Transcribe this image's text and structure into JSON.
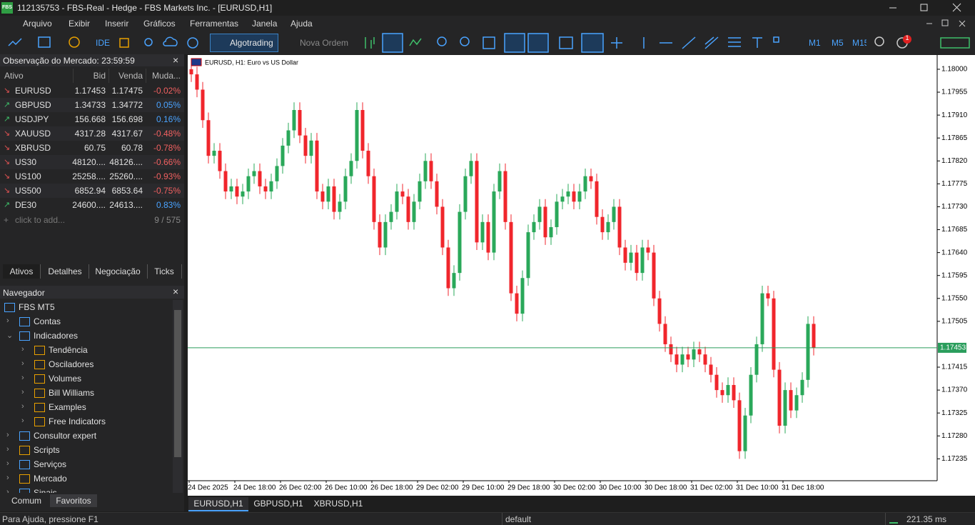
{
  "window": {
    "logo": "FBS",
    "title": "112135753 - FBS-Real - Hedge - FBS Markets Inc. - [EURUSD,H1]"
  },
  "menu": [
    "Arquivo",
    "Exibir",
    "Inserir",
    "Gráficos",
    "Ferramentas",
    "Janela",
    "Ajuda"
  ],
  "toolbar": {
    "ide": "IDE",
    "algotrading": "Algotrading",
    "new_order": "Nova Ordem",
    "timeframes": [
      "M1",
      "M5",
      "M15"
    ],
    "notifications": "1"
  },
  "market_watch": {
    "title": "Observação do Mercado: 23:59:59",
    "columns": [
      "Ativo",
      "Bid",
      "Venda",
      "Muda..."
    ],
    "rows": [
      [
        "EURUSD",
        "1.17453",
        "1.17475",
        "-0.02%"
      ],
      [
        "GBPUSD",
        "1.34733",
        "1.34772",
        "0.05%"
      ],
      [
        "USDJPY",
        "156.668",
        "156.698",
        "0.16%"
      ],
      [
        "XAUUSD",
        "4317.28",
        "4317.67",
        "-0.48%"
      ],
      [
        "XBRUSD",
        "60.75",
        "60.78",
        "-0.78%"
      ],
      [
        "US30",
        "48120....",
        "48126....",
        "-0.66%"
      ],
      [
        "US100",
        "25258....",
        "25260....",
        "-0.93%"
      ],
      [
        "US500",
        "6852.94",
        "6853.64",
        "-0.75%"
      ],
      [
        "DE30",
        "24600....",
        "24613....",
        "0.83%"
      ]
    ],
    "add": "click to add...",
    "count": "9 / 575",
    "tabs": [
      "Ativos",
      "Detalhes",
      "Negociação",
      "Ticks"
    ]
  },
  "navigator": {
    "title": "Navegador",
    "items": [
      "FBS MT5",
      "Contas",
      "Indicadores",
      "Tendência",
      "Osciladores",
      "Volumes",
      "Bill Williams",
      "Examples",
      "Free Indicators",
      "Consultor expert",
      "Scripts",
      "Serviços",
      "Mercado",
      "Sinais"
    ],
    "tabs": [
      "Comum",
      "Favoritos"
    ]
  },
  "chart": {
    "type": "candlestick",
    "title": "EURUSD, H1:  Euro vs US Dollar",
    "colors": {
      "up": "#2aa85a",
      "down": "#f0262c",
      "bid": "#2a9d5c"
    },
    "grid": false,
    "ylim": [
      1.17192,
      1.18028
    ],
    "yticks": [
      {
        "value": 1.18,
        "label": "1.18000"
      },
      1.17955,
      {
        "value": 1.1791,
        "label": "1.17910"
      },
      1.17865,
      {
        "value": 1.1782,
        "label": "1.17820"
      },
      1.17775,
      {
        "value": 1.1773,
        "label": "1.17730"
      },
      1.17685,
      {
        "value": 1.1764,
        "label": "1.17640"
      },
      1.17595,
      {
        "value": 1.1755,
        "label": "1.17550"
      },
      1.17505,
      1.17415,
      {
        "value": 1.1737,
        "label": "1.17370"
      },
      1.17325,
      {
        "value": 1.1728,
        "label": "1.17280"
      },
      1.17235
    ],
    "bid_line": 1.17453,
    "x_labels": [
      "24 Dec 2025",
      "24 Dec 18:00",
      "26 Dec 02:00",
      "26 Dec 10:00",
      "26 Dec 18:00",
      "29 Dec 02:00",
      "29 Dec 10:00",
      "29 Dec 18:00",
      "30 Dec 02:00",
      "30 Dec 10:00",
      "30 Dec 18:00",
      "31 Dec 02:00",
      "31 Dec 10:00",
      "31 Dec 18:00"
    ],
    "candles": [
      [
        1.18,
        1.18015,
        1.17975,
        1.1799
      ],
      [
        1.1799,
        1.18005,
        1.17945,
        1.1796
      ],
      [
        1.1796,
        1.17975,
        1.17885,
        1.179
      ],
      [
        1.179,
        1.17915,
        1.17815,
        1.1783
      ],
      [
        1.1783,
        1.17855,
        1.17815,
        1.1784
      ],
      [
        1.1784,
        1.17855,
        1.17785,
        1.178
      ],
      [
        1.178,
        1.17815,
        1.17745,
        1.1776
      ],
      [
        1.1776,
        1.17785,
        1.17745,
        1.1777
      ],
      [
        1.1777,
        1.17785,
        1.17735,
        1.1775
      ],
      [
        1.1775,
        1.17775,
        1.17735,
        1.1776
      ],
      [
        1.1776,
        1.17805,
        1.17745,
        1.1779
      ],
      [
        1.1779,
        1.17815,
        1.17775,
        1.178
      ],
      [
        1.178,
        1.17815,
        1.17755,
        1.1777
      ],
      [
        1.1777,
        1.17785,
        1.17745,
        1.1776
      ],
      [
        1.1776,
        1.17795,
        1.17745,
        1.1778
      ],
      [
        1.1778,
        1.17825,
        1.17765,
        1.1781
      ],
      [
        1.1781,
        1.17865,
        1.17795,
        1.1785
      ],
      [
        1.1785,
        1.17895,
        1.17835,
        1.1788
      ],
      [
        1.1788,
        1.17935,
        1.17865,
        1.1792
      ],
      [
        1.1792,
        1.17935,
        1.17855,
        1.1787
      ],
      [
        1.1787,
        1.17885,
        1.17815,
        1.1783
      ],
      [
        1.1783,
        1.17875,
        1.17815,
        1.1786
      ],
      [
        1.1786,
        1.17875,
        1.17745,
        1.1776
      ],
      [
        1.1776,
        1.17775,
        1.17725,
        1.1774
      ],
      [
        1.1774,
        1.17785,
        1.17725,
        1.1777
      ],
      [
        1.1777,
        1.17785,
        1.17705,
        1.1772
      ],
      [
        1.1772,
        1.17755,
        1.17705,
        1.1774
      ],
      [
        1.1774,
        1.17805,
        1.17725,
        1.1779
      ],
      [
        1.1779,
        1.17835,
        1.17775,
        1.1782
      ],
      [
        1.1782,
        1.17935,
        1.17805,
        1.1792
      ],
      [
        1.1792,
        1.17935,
        1.17825,
        1.1784
      ],
      [
        1.1784,
        1.17855,
        1.17775,
        1.1779
      ],
      [
        1.1779,
        1.17805,
        1.17685,
        1.177
      ],
      [
        1.177,
        1.17715,
        1.17635,
        1.1765
      ],
      [
        1.1765,
        1.17715,
        1.17635,
        1.177
      ],
      [
        1.177,
        1.17735,
        1.17685,
        1.1772
      ],
      [
        1.1772,
        1.17775,
        1.17705,
        1.1776
      ],
      [
        1.1776,
        1.17775,
        1.17735,
        1.1775
      ],
      [
        1.1775,
        1.17765,
        1.17685,
        1.177
      ],
      [
        1.177,
        1.17755,
        1.17685,
        1.1774
      ],
      [
        1.1774,
        1.17795,
        1.17725,
        1.1778
      ],
      [
        1.1778,
        1.17835,
        1.17765,
        1.1782
      ],
      [
        1.1782,
        1.17835,
        1.17765,
        1.1778
      ],
      [
        1.1778,
        1.17795,
        1.17715,
        1.1773
      ],
      [
        1.1773,
        1.17745,
        1.17635,
        1.1765
      ],
      [
        1.1765,
        1.17665,
        1.17555,
        1.1757
      ],
      [
        1.1757,
        1.17615,
        1.17555,
        1.176
      ],
      [
        1.176,
        1.17735,
        1.17585,
        1.1772
      ],
      [
        1.1772,
        1.17805,
        1.17705,
        1.1779
      ],
      [
        1.1779,
        1.17835,
        1.17775,
        1.1782
      ],
      [
        1.1782,
        1.17835,
        1.17645,
        1.1766
      ],
      [
        1.1766,
        1.17715,
        1.17645,
        1.177
      ],
      [
        1.177,
        1.17715,
        1.17625,
        1.1764
      ],
      [
        1.1764,
        1.17775,
        1.17625,
        1.1776
      ],
      [
        1.1776,
        1.17815,
        1.17745,
        1.178
      ],
      [
        1.178,
        1.17815,
        1.17685,
        1.177
      ],
      [
        1.177,
        1.17715,
        1.17545,
        1.1756
      ],
      [
        1.1756,
        1.17575,
        1.17505,
        1.1752
      ],
      [
        1.1752,
        1.17605,
        1.17505,
        1.1759
      ],
      [
        1.1759,
        1.17695,
        1.17575,
        1.1768
      ],
      [
        1.1768,
        1.17715,
        1.17665,
        1.177
      ],
      [
        1.177,
        1.17745,
        1.17685,
        1.1773
      ],
      [
        1.1773,
        1.17745,
        1.17655,
        1.1767
      ],
      [
        1.1767,
        1.17705,
        1.17655,
        1.1769
      ],
      [
        1.1769,
        1.17755,
        1.17675,
        1.1774
      ],
      [
        1.1774,
        1.17765,
        1.17725,
        1.1775
      ],
      [
        1.1775,
        1.17775,
        1.17735,
        1.1776
      ],
      [
        1.1776,
        1.17775,
        1.17725,
        1.1774
      ],
      [
        1.1774,
        1.17775,
        1.17725,
        1.1776
      ],
      [
        1.1776,
        1.17805,
        1.17745,
        1.1779
      ],
      [
        1.1779,
        1.17805,
        1.17765,
        1.1778
      ],
      [
        1.1778,
        1.17795,
        1.17695,
        1.1771
      ],
      [
        1.1771,
        1.17725,
        1.17665,
        1.1768
      ],
      [
        1.1768,
        1.17715,
        1.17665,
        1.177
      ],
      [
        1.177,
        1.17745,
        1.17685,
        1.1773
      ],
      [
        1.1773,
        1.17745,
        1.17635,
        1.1765
      ],
      [
        1.1765,
        1.17665,
        1.17605,
        1.1762
      ],
      [
        1.1762,
        1.17655,
        1.17605,
        1.1764
      ],
      [
        1.1764,
        1.17655,
        1.17585,
        1.176
      ],
      [
        1.176,
        1.17665,
        1.17585,
        1.1765
      ],
      [
        1.1765,
        1.17665,
        1.17625,
        1.1764
      ],
      [
        1.1764,
        1.17655,
        1.17535,
        1.1755
      ],
      [
        1.1755,
        1.17565,
        1.17485,
        1.175
      ],
      [
        1.175,
        1.17515,
        1.17445,
        1.1746
      ],
      [
        1.1746,
        1.17475,
        1.17425,
        1.1744
      ],
      [
        1.1744,
        1.17455,
        1.17405,
        1.1742
      ],
      [
        1.1742,
        1.17455,
        1.17405,
        1.1744
      ],
      [
        1.1744,
        1.17455,
        1.17415,
        1.1743
      ],
      [
        1.1743,
        1.17465,
        1.17415,
        1.1745
      ],
      [
        1.1745,
        1.17465,
        1.17425,
        1.1744
      ],
      [
        1.1744,
        1.17455,
        1.17405,
        1.1742
      ],
      [
        1.1742,
        1.17435,
        1.17385,
        1.174
      ],
      [
        1.174,
        1.17415,
        1.17355,
        1.1737
      ],
      [
        1.1737,
        1.17385,
        1.17345,
        1.1736
      ],
      [
        1.1736,
        1.17395,
        1.17345,
        1.1738
      ],
      [
        1.1738,
        1.17395,
        1.17335,
        1.1735
      ],
      [
        1.1735,
        1.17365,
        1.17235,
        1.1725
      ],
      [
        1.1725,
        1.17335,
        1.17235,
        1.1732
      ],
      [
        1.1732,
        1.17415,
        1.17305,
        1.174
      ],
      [
        1.174,
        1.17475,
        1.17385,
        1.1746
      ],
      [
        1.1746,
        1.17575,
        1.17445,
        1.1756
      ],
      [
        1.1756,
        1.17575,
        1.17535,
        1.1755
      ],
      [
        1.1755,
        1.17565,
        1.17395,
        1.1741
      ],
      [
        1.1741,
        1.17425,
        1.17285,
        1.173
      ],
      [
        1.173,
        1.17385,
        1.17285,
        1.1737
      ],
      [
        1.1737,
        1.17385,
        1.17315,
        1.1733
      ],
      [
        1.1733,
        1.17375,
        1.17315,
        1.1736
      ],
      [
        1.1736,
        1.17405,
        1.17345,
        1.1739
      ],
      [
        1.1739,
        1.17515,
        1.17375,
        1.175
      ],
      [
        1.175,
        1.17515,
        1.17438,
        1.17453
      ]
    ]
  },
  "chart_tabs": [
    "EURUSD,H1",
    "GBPUSD,H1",
    "XBRUSD,H1"
  ],
  "status": {
    "help": "Para Ajuda, pressione F1",
    "profile": "default",
    "ping": "221.35 ms"
  }
}
